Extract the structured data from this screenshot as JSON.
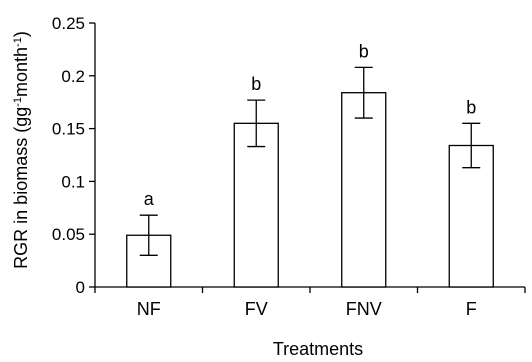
{
  "chart_data": {
    "type": "bar",
    "categories": [
      "NF",
      "FV",
      "FNV",
      "F"
    ],
    "values": [
      0.049,
      0.155,
      0.184,
      0.134
    ],
    "error": [
      0.019,
      0.022,
      0.024,
      0.021
    ],
    "significance_letters": [
      "a",
      "b",
      "b",
      "b"
    ],
    "xlabel": "Treatments",
    "ylabel": {
      "prefix": "RGR in biomass (gg",
      "sup1": "-1",
      "middle": "month",
      "sup2": "-1",
      "suffix": ")"
    },
    "ylim": [
      0,
      0.25
    ],
    "yticks": [
      0,
      0.05,
      0.1,
      0.15,
      0.2,
      0.25
    ],
    "ytick_labels": [
      "0",
      "0.05",
      "0.1",
      "0.15",
      "0.2",
      "0.25"
    ],
    "grid": false,
    "legend": "none",
    "colors": {
      "bar_fill": "#ffffff",
      "bar_stroke": "#000000",
      "axis": "#000000"
    }
  }
}
